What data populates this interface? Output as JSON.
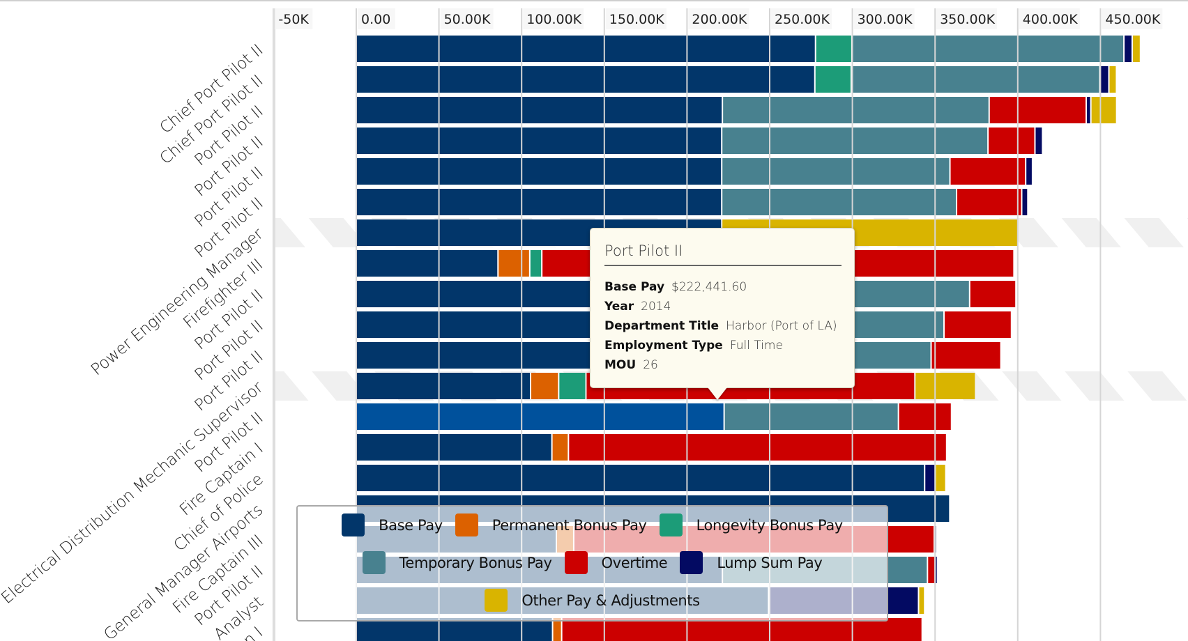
{
  "chart_data": {
    "type": "bar",
    "orientation": "horizontal",
    "stacked": true,
    "title": "",
    "xlabel": "",
    "ylabel": "",
    "xlim": [
      -50000,
      500000
    ],
    "x_ticks": [
      -50000,
      0,
      50000,
      100000,
      150000,
      200000,
      250000,
      300000,
      350000,
      400000,
      450000
    ],
    "x_tick_labels": [
      "-50K",
      "0.00",
      "50.00K",
      "100.00K",
      "150.00K",
      "200.00K",
      "250.00K",
      "300.00K",
      "350.00K",
      "400.00K",
      "450.00K"
    ],
    "grid": true,
    "legend_position": "bottom-overlay",
    "categories": [
      "Chief Port Pilot II",
      "Chief Port Pilot II",
      "Port Pilot II",
      "Port Pilot II",
      "Port Pilot II",
      "Port Pilot II",
      "Power Engineering Manager",
      "Firefighter III",
      "Port Pilot II",
      "Port Pilot II",
      "Port Pilot II",
      "Electrical Distribution Mechanic Supervisor",
      "Port Pilot II",
      "Fire Captain I",
      "Chief of Police",
      "General Manager Airports",
      "Fire Captain III",
      "Port Pilot II",
      "Analyst",
      "n I"
    ],
    "highlighted_index": 12,
    "striped_rows": [
      6,
      11
    ],
    "series": [
      {
        "name": "Base Pay",
        "color": "#02366a",
        "values": [
          277700,
          277300,
          221400,
          221000,
          221000,
          221000,
          221000,
          85700,
          221000,
          221000,
          221000,
          105400,
          222441.6,
          118300,
          343700,
          358900,
          121000,
          221400,
          249300,
          118700
        ]
      },
      {
        "name": "Permanent Bonus Pay",
        "color": "#dc6100",
        "values": [
          0,
          0,
          0,
          0,
          0,
          0,
          0,
          19200,
          0,
          0,
          0,
          17000,
          0,
          10000,
          0,
          0,
          10500,
          0,
          0,
          5500
        ]
      },
      {
        "name": "Longevity Bonus Pay",
        "color": "#1c9c78",
        "values": [
          22000,
          22000,
          0,
          0,
          0,
          0,
          0,
          7300,
          0,
          0,
          0,
          16500,
          0,
          0,
          0,
          0,
          0,
          0,
          0,
          0
        ]
      },
      {
        "name": "Temporary Bonus Pay",
        "color": "#48818f",
        "values": [
          164500,
          150300,
          161300,
          161000,
          138000,
          142000,
          0,
          0,
          149900,
          134400,
          126600,
          0,
          105400,
          0,
          0,
          0,
          0,
          124000,
          0,
          0
        ]
      },
      {
        "name": "Overtime",
        "color": "#cc0000",
        "values": [
          0,
          0,
          58700,
          28400,
          45800,
          39400,
          0,
          285500,
          28000,
          40800,
          42200,
          198900,
          32100,
          228700,
          0,
          0,
          218000,
          4600,
          0,
          218000
        ]
      },
      {
        "name": "Lump Sum Pay",
        "color": "#030a62",
        "values": [
          5000,
          5500,
          2800,
          4600,
          4100,
          3700,
          0,
          0,
          0,
          0,
          0,
          0,
          0,
          0,
          6400,
          0,
          1500,
          1000,
          90700,
          0
        ]
      },
      {
        "name": "Other Pay & Adjustments",
        "color": "#d9b400",
        "values": [
          5000,
          4600,
          15600,
          0,
          0,
          0,
          179700,
          0,
          0,
          0,
          0,
          36700,
          0,
          0,
          6400,
          0,
          0,
          0,
          3700,
          0
        ]
      }
    ]
  },
  "colors": {
    "highlight_base": "#00519c",
    "grid": "#d5d5d5",
    "stripe": "#f0f0f0",
    "tooltip_bg": "#fdfbef"
  },
  "tooltip": {
    "title": "Port Pilot II",
    "rows": [
      {
        "key": "Base Pay",
        "value": "$222,441.60"
      },
      {
        "key": "Year",
        "value": "2014"
      },
      {
        "key": "Department Title",
        "value": "Harbor (Port of LA)"
      },
      {
        "key": "Employment Type",
        "value": "Full Time"
      },
      {
        "key": "MOU",
        "value": "26"
      }
    ]
  },
  "legend": {
    "rows": [
      [
        {
          "label": "Base Pay",
          "color": "#02366a"
        },
        {
          "label": "Permanent Bonus Pay",
          "color": "#dc6100"
        },
        {
          "label": "Longevity Bonus Pay",
          "color": "#1c9c78"
        }
      ],
      [
        {
          "label": "Temporary Bonus Pay",
          "color": "#48818f"
        },
        {
          "label": "Overtime",
          "color": "#cc0000"
        },
        {
          "label": "Lump Sum Pay",
          "color": "#030a62"
        }
      ],
      [
        {
          "label": "Other Pay & Adjustments",
          "color": "#d9b400"
        }
      ]
    ]
  }
}
